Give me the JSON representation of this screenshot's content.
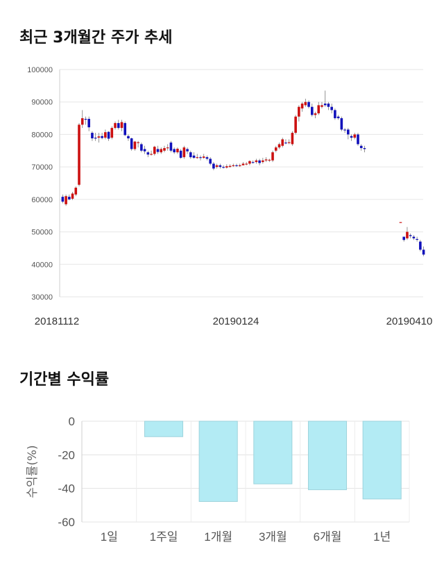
{
  "sections": {
    "price_title": "최근 3개월간 주가 추세",
    "return_title": "기간별 수익률"
  },
  "chart_data": [
    {
      "type": "candlestick",
      "title": "최근 3개월간 주가 추세",
      "ylim": [
        30000,
        100000
      ],
      "y_ticks": [
        "100000",
        "90000",
        "80000",
        "70000",
        "60000",
        "50000",
        "40000",
        "30000"
      ],
      "x_labels": [
        "20181112",
        "20190124",
        "20190410"
      ],
      "colors": {
        "up": "#cc1111",
        "down": "#1111bb",
        "grid": "#e6e6e6"
      },
      "candles": [
        [
          60800,
          59300,
          61500,
          58800
        ],
        [
          58500,
          61000,
          61500,
          58000
        ],
        [
          60800,
          60000,
          61500,
          59700
        ],
        [
          60200,
          61800,
          62300,
          59800
        ],
        [
          61500,
          63600,
          64000,
          61000
        ],
        [
          64500,
          83000,
          83500,
          64000
        ],
        [
          83000,
          85000,
          87500,
          82000
        ],
        [
          84800,
          84700,
          85500,
          83000
        ],
        [
          84800,
          82200,
          85500,
          81000
        ],
        [
          80500,
          78800,
          81000,
          78000
        ],
        [
          79000,
          78800,
          80500,
          78000
        ],
        [
          79000,
          79400,
          80500,
          77500
        ],
        [
          79500,
          78900,
          80500,
          78500
        ],
        [
          79000,
          80700,
          81500,
          78500
        ],
        [
          80800,
          78700,
          81000,
          78000
        ],
        [
          79000,
          82000,
          82500,
          78500
        ],
        [
          82000,
          83500,
          84000,
          81500
        ],
        [
          83500,
          82000,
          84500,
          81500
        ],
        [
          82000,
          83800,
          84500,
          81000
        ],
        [
          83500,
          79800,
          84000,
          79500
        ],
        [
          79500,
          78800,
          80000,
          78000
        ],
        [
          78800,
          75500,
          79000,
          75000
        ],
        [
          75500,
          77800,
          78000,
          75000
        ],
        [
          77500,
          77600,
          78000,
          76000
        ],
        [
          77000,
          75000,
          77500,
          74500
        ],
        [
          75500,
          74800,
          76500,
          74000
        ],
        [
          74500,
          73800,
          75000,
          73000
        ],
        [
          74000,
          74000,
          75000,
          73500
        ],
        [
          74000,
          76200,
          76500,
          73500
        ],
        [
          75500,
          74600,
          76500,
          74000
        ],
        [
          74500,
          75500,
          76000,
          74000
        ],
        [
          75000,
          75800,
          76500,
          74500
        ],
        [
          76000,
          76000,
          77000,
          75000
        ],
        [
          77500,
          75000,
          78000,
          74500
        ],
        [
          75500,
          74500,
          76000,
          74000
        ],
        [
          74500,
          75600,
          76000,
          74000
        ],
        [
          75000,
          72800,
          75500,
          72500
        ],
        [
          73000,
          76000,
          76500,
          72500
        ],
        [
          75500,
          74800,
          76000,
          74000
        ],
        [
          74500,
          73000,
          75000,
          72500
        ],
        [
          73500,
          72800,
          74500,
          72500
        ],
        [
          72800,
          73000,
          74000,
          72500
        ],
        [
          73000,
          72800,
          73500,
          72000
        ],
        [
          72800,
          73200,
          74000,
          72500
        ],
        [
          73000,
          72500,
          73500,
          72000
        ],
        [
          72500,
          71000,
          73000,
          70500
        ],
        [
          71000,
          69500,
          71500,
          69000
        ],
        [
          70000,
          70500,
          71000,
          69500
        ],
        [
          70500,
          70000,
          71000,
          69500
        ],
        [
          70000,
          69800,
          70500,
          69500
        ],
        [
          69800,
          70200,
          70800,
          69500
        ],
        [
          70000,
          70300,
          70800,
          69800
        ],
        [
          70300,
          70500,
          71000,
          70000
        ],
        [
          70500,
          70300,
          71000,
          70000
        ],
        [
          70300,
          70500,
          71000,
          70000
        ],
        [
          70500,
          71000,
          71500,
          70500
        ],
        [
          71000,
          71000,
          71500,
          70500
        ],
        [
          71000,
          71800,
          72000,
          70500
        ],
        [
          71500,
          71300,
          72000,
          71000
        ],
        [
          71500,
          72000,
          72500,
          71000
        ],
        [
          72000,
          71200,
          72500,
          70500
        ],
        [
          71500,
          72000,
          72800,
          71000
        ],
        [
          72000,
          72300,
          73000,
          71500
        ],
        [
          72000,
          72200,
          72500,
          71500
        ],
        [
          72000,
          74500,
          75000,
          71500
        ],
        [
          75000,
          76000,
          76500,
          74500
        ],
        [
          76000,
          77000,
          77500,
          75500
        ],
        [
          76500,
          78500,
          79000,
          76000
        ],
        [
          77500,
          77300,
          78500,
          77000
        ],
        [
          77500,
          77600,
          78500,
          77000
        ],
        [
          77000,
          80500,
          81000,
          76500
        ],
        [
          80500,
          85500,
          86000,
          80000
        ],
        [
          85500,
          88500,
          89000,
          84000
        ],
        [
          88000,
          89500,
          90000,
          87000
        ],
        [
          89000,
          90000,
          91000,
          88500
        ],
        [
          90000,
          88500,
          90500,
          88000
        ],
        [
          88500,
          86000,
          89500,
          85500
        ],
        [
          86000,
          86500,
          87000,
          85000
        ],
        [
          86500,
          89000,
          90000,
          86000
        ],
        [
          88500,
          89000,
          90000,
          88000
        ],
        [
          89500,
          89000,
          93500,
          88500
        ],
        [
          89500,
          88500,
          90000,
          87500
        ],
        [
          88500,
          87500,
          89500,
          86500
        ],
        [
          87500,
          85000,
          88000,
          84500
        ],
        [
          85500,
          85000,
          86000,
          84500
        ],
        [
          85000,
          81500,
          85500,
          81000
        ],
        [
          81500,
          81300,
          82000,
          80500
        ],
        [
          81500,
          80000,
          82000,
          78500
        ],
        [
          79500,
          79000,
          80000,
          78000
        ],
        [
          79000,
          80000,
          80500,
          78500
        ],
        [
          80000,
          77000,
          80500,
          76500
        ],
        [
          76500,
          75800,
          77000,
          75000
        ],
        [
          75800,
          75500,
          76500,
          74500
        ],
        null,
        null,
        null,
        null,
        null,
        null,
        null,
        null,
        null,
        null,
        [
          53000,
          53000,
          53000,
          53000
        ],
        [
          48500,
          47500,
          48500,
          47000
        ],
        [
          48000,
          50000,
          51500,
          47500
        ],
        [
          49000,
          48700,
          49500,
          48000
        ],
        [
          48500,
          48000,
          49000,
          47500
        ],
        [
          47800,
          47700,
          48500,
          47000
        ],
        [
          47000,
          44500,
          47500,
          44000
        ],
        [
          44500,
          43000,
          45500,
          42500
        ]
      ]
    },
    {
      "type": "bar",
      "title": "기간별 수익률",
      "ylabel": "수익률(%)",
      "ylim": [
        -60,
        0
      ],
      "y_ticks": [
        "0",
        "-20",
        "-40",
        "-60"
      ],
      "categories": [
        "1일",
        "1주일",
        "1개월",
        "3개월",
        "6개월",
        "1년"
      ],
      "values": [
        0,
        -9.2,
        -47.8,
        -37.3,
        -40.8,
        -46.3
      ],
      "colors": {
        "bar_fill": "#b3ebf4",
        "bar_stroke": "#9dd3dc",
        "grid": "#e3e3e3"
      }
    }
  ]
}
